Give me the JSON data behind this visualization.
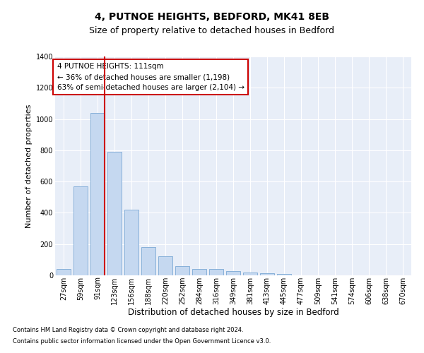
{
  "title1": "4, PUTNOE HEIGHTS, BEDFORD, MK41 8EB",
  "title2": "Size of property relative to detached houses in Bedford",
  "xlabel": "Distribution of detached houses by size in Bedford",
  "ylabel": "Number of detached properties",
  "footnote1": "Contains HM Land Registry data © Crown copyright and database right 2024.",
  "footnote2": "Contains public sector information licensed under the Open Government Licence v3.0.",
  "annotation_title": "4 PUTNOE HEIGHTS: 111sqm",
  "annotation_line1": "← 36% of detached houses are smaller (1,198)",
  "annotation_line2": "63% of semi-detached houses are larger (2,104) →",
  "bar_labels": [
    "27sqm",
    "59sqm",
    "91sqm",
    "123sqm",
    "156sqm",
    "188sqm",
    "220sqm",
    "252sqm",
    "284sqm",
    "316sqm",
    "349sqm",
    "381sqm",
    "413sqm",
    "445sqm",
    "477sqm",
    "509sqm",
    "541sqm",
    "574sqm",
    "606sqm",
    "638sqm",
    "670sqm"
  ],
  "bar_values": [
    40,
    570,
    1040,
    790,
    420,
    180,
    120,
    60,
    40,
    40,
    25,
    20,
    15,
    10,
    0,
    0,
    0,
    0,
    0,
    0,
    0
  ],
  "bar_color": "#c5d8f0",
  "bar_edge_color": "#7aa8d4",
  "vline_color": "#cc0000",
  "background_color": "#e8eef8",
  "ylim": [
    0,
    1400
  ],
  "yticks": [
    0,
    200,
    400,
    600,
    800,
    1000,
    1200,
    1400
  ],
  "grid_color": "#ffffff",
  "title1_fontsize": 10,
  "title2_fontsize": 9,
  "ylabel_fontsize": 8,
  "xlabel_fontsize": 8.5,
  "tick_fontsize": 7,
  "annotation_box_color": "#cc0000",
  "annotation_fontsize": 7.5,
  "footnote_fontsize": 6
}
